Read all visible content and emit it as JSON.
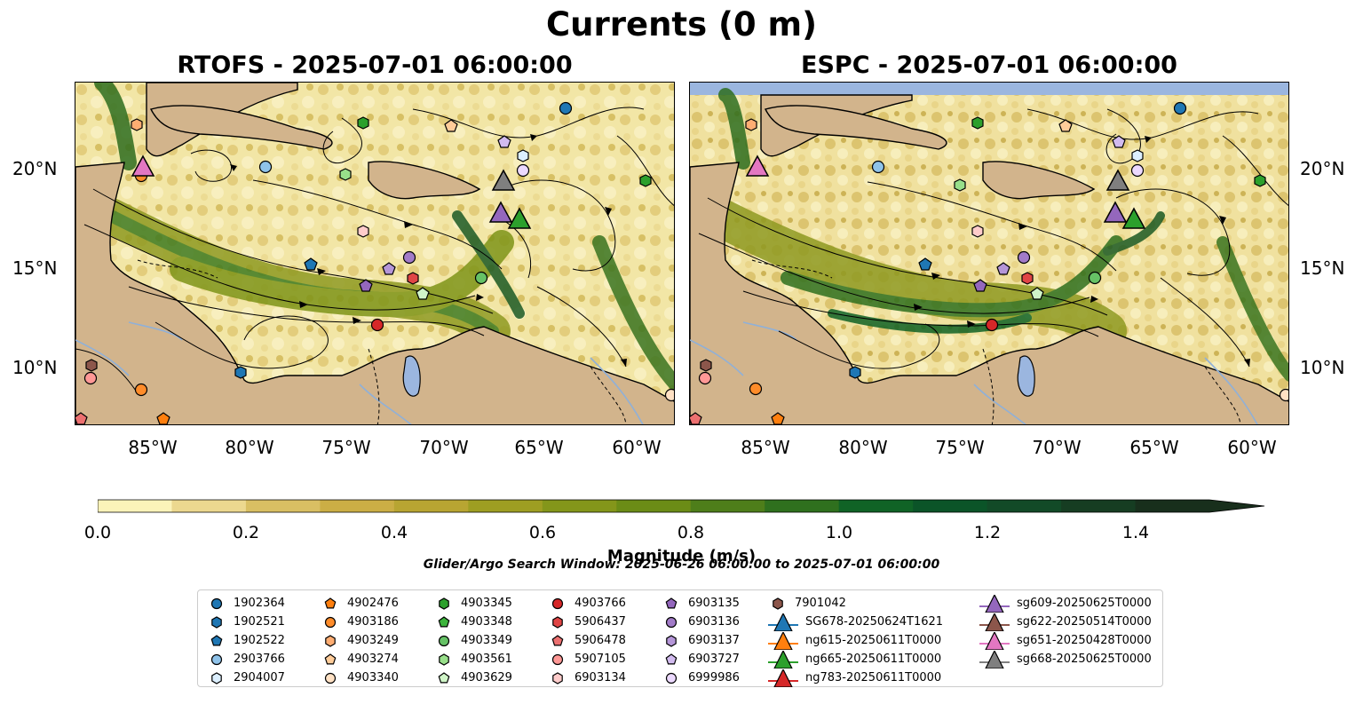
{
  "title": "Currents (0 m)",
  "panels": [
    {
      "id": "rtofs",
      "title": "RTOFS - 2025-07-01 06:00:00"
    },
    {
      "id": "espc",
      "title": "ESPC - 2025-07-01 06:00:00"
    }
  ],
  "axes": {
    "y_ticks": [
      "20°N",
      "15°N",
      "10°N"
    ],
    "x_ticks": [
      "85°W",
      "80°W",
      "75°W",
      "70°W",
      "65°W",
      "60°W"
    ]
  },
  "colorbar": {
    "label": "Magnitude (m/s)",
    "ticks": [
      "0.0",
      "0.2",
      "0.4",
      "0.6",
      "0.8",
      "1.0",
      "1.2",
      "1.4"
    ],
    "min": 0.0,
    "max": 1.5,
    "step": 0.1,
    "extend": "max",
    "colors": [
      "#fbf3b9",
      "#ecd88f",
      "#d9bf63",
      "#cbae45",
      "#b8a532",
      "#9e9e22",
      "#84961a",
      "#6b8c16",
      "#4e7e1a",
      "#2f701e",
      "#106326",
      "#0b5428",
      "#124a27",
      "#163d22",
      "#182f1c"
    ]
  },
  "search_window": "Glider/Argo Search Window: 2025-06-26 06:00:00 to 2025-07-01 06:00:00",
  "legend": {
    "columns": [
      [
        {
          "label": "1902364",
          "shape": "circle",
          "color": "#1f77b4"
        },
        {
          "label": "1902521",
          "shape": "hexagon",
          "color": "#1f77b4"
        },
        {
          "label": "1902522",
          "shape": "pentagon",
          "color": "#1f77b4"
        },
        {
          "label": "2903766",
          "shape": "circle",
          "color": "#8fc3ea"
        },
        {
          "label": "2904007",
          "shape": "hexagon",
          "color": "#dcefff"
        }
      ],
      [
        {
          "label": "4902476",
          "shape": "pentagon",
          "color": "#ff7f0e"
        },
        {
          "label": "4903186",
          "shape": "circle",
          "color": "#ff8c2a"
        },
        {
          "label": "4903249",
          "shape": "hexagon",
          "color": "#ffad72"
        },
        {
          "label": "4903274",
          "shape": "pentagon",
          "color": "#ffcc99"
        },
        {
          "label": "4903340",
          "shape": "circle",
          "color": "#ffe1c4"
        }
      ],
      [
        {
          "label": "4903345",
          "shape": "hexagon",
          "color": "#2ca02c"
        },
        {
          "label": "4903348",
          "shape": "pentagon",
          "color": "#3cb43c"
        },
        {
          "label": "4903349",
          "shape": "circle",
          "color": "#66c266"
        },
        {
          "label": "4903561",
          "shape": "hexagon",
          "color": "#98df8a"
        },
        {
          "label": "4903629",
          "shape": "pentagon",
          "color": "#d0f5c8"
        }
      ],
      [
        {
          "label": "4903766",
          "shape": "circle",
          "color": "#d62728"
        },
        {
          "label": "5906437",
          "shape": "hexagon",
          "color": "#e04545"
        },
        {
          "label": "5906478",
          "shape": "pentagon",
          "color": "#ec7070"
        },
        {
          "label": "5907105",
          "shape": "circle",
          "color": "#ff9896"
        },
        {
          "label": "6903134",
          "shape": "hexagon",
          "color": "#ffcccb"
        }
      ],
      [
        {
          "label": "6903135",
          "shape": "pentagon",
          "color": "#9467bd"
        },
        {
          "label": "6903136",
          "shape": "circle",
          "color": "#a27bc8"
        },
        {
          "label": "6903137",
          "shape": "hexagon",
          "color": "#b596d8"
        },
        {
          "label": "6903727",
          "shape": "pentagon",
          "color": "#d2bbef"
        },
        {
          "label": "6999986",
          "shape": "circle",
          "color": "#ecd9ff"
        }
      ],
      [
        {
          "label": "7901042",
          "shape": "hexagon",
          "color": "#8c564b"
        },
        {
          "label": "SG678-20250624T1621",
          "shape": "triangle",
          "color": "#1f77b4"
        },
        {
          "label": "ng615-20250611T0000",
          "shape": "triangle",
          "color": "#ff7f0e"
        },
        {
          "label": "ng665-20250611T0000",
          "shape": "triangle",
          "color": "#2ca02c"
        },
        {
          "label": "ng783-20250611T0000",
          "shape": "triangle",
          "color": "#d62728"
        }
      ],
      [
        {
          "label": "sg609-20250625T0000",
          "shape": "triangle",
          "color": "#9467bd"
        },
        {
          "label": "sg622-20250514T0000",
          "shape": "triangle",
          "color": "#8c564b"
        },
        {
          "label": "sg651-20250428T0000",
          "shape": "triangle",
          "color": "#e377c2"
        },
        {
          "label": "sg668-20250625T0000",
          "shape": "triangle",
          "color": "#7f7f7f"
        }
      ]
    ]
  }
}
